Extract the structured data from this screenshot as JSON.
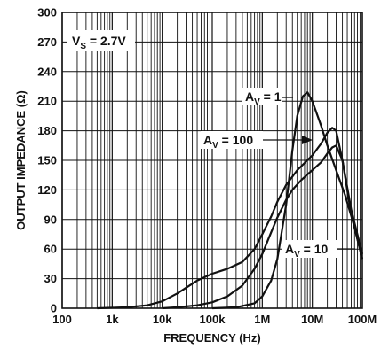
{
  "chart_data": {
    "type": "line",
    "title": "",
    "annotation": "V_S = 2.7V",
    "annotation_main": "V",
    "annotation_sub": "S",
    "annotation_rest": " =  2.7V",
    "xlabel": "FREQUENCY (Hz)",
    "ylabel": "OUTPUT IMPEDANCE (Ω)",
    "x_scale": "log",
    "xlim": [
      100,
      100000000
    ],
    "ylim": [
      0,
      300
    ],
    "x_ticks": [
      100,
      1000,
      10000,
      100000,
      1000000,
      10000000,
      100000000
    ],
    "x_tick_labels": [
      "100",
      "1k",
      "10k",
      "100k",
      "1M",
      "10M",
      "100M"
    ],
    "y_ticks": [
      0,
      30,
      60,
      90,
      120,
      150,
      180,
      210,
      240,
      270,
      300
    ],
    "y_tick_labels": [
      "0",
      "30",
      "60",
      "90",
      "120",
      "150",
      "180",
      "210",
      "240",
      "270",
      "300"
    ],
    "grid": true,
    "series": [
      {
        "name": "A_V = 1",
        "label_main": "A",
        "label_sub": "V",
        "label_rest": " = 1",
        "x": [
          100000,
          300000,
          700000,
          1000000,
          1500000,
          2000000,
          3000000,
          4000000,
          5000000,
          6500000,
          8000000,
          10000000,
          15000000,
          20000000,
          30000000,
          45000000,
          70000000,
          100000000
        ],
        "y": [
          0,
          1,
          5,
          12,
          28,
          50,
          105,
          160,
          195,
          215,
          219,
          210,
          185,
          165,
          140,
          115,
          82,
          50
        ]
      },
      {
        "name": "A_V = 100",
        "label_main": "A",
        "label_sub": "V",
        "label_rest": " = 100",
        "x": [
          500,
          2000,
          5000,
          10000,
          20000,
          50000,
          100000,
          200000,
          400000,
          700000,
          1000000,
          1500000,
          2000000,
          3000000,
          5000000,
          10000000,
          15000000,
          20000000,
          25000000,
          30000000,
          40000000,
          60000000,
          100000000
        ],
        "y": [
          0,
          1,
          3,
          7,
          15,
          28,
          35,
          40,
          47,
          60,
          75,
          93,
          108,
          125,
          140,
          155,
          167,
          178,
          183,
          180,
          150,
          95,
          50
        ]
      },
      {
        "name": "A_V = 10",
        "label_main": "A",
        "label_sub": "V",
        "label_rest": " = 10",
        "x": [
          10000,
          20000,
          50000,
          100000,
          200000,
          400000,
          700000,
          1000000,
          1500000,
          2000000,
          3000000,
          4000000,
          6000000,
          10000000,
          15000000,
          20000000,
          25000000,
          30000000,
          40000000,
          60000000,
          100000000
        ],
        "y": [
          0,
          1,
          3,
          6,
          12,
          23,
          40,
          55,
          77,
          92,
          110,
          120,
          130,
          140,
          148,
          157,
          163,
          165,
          150,
          100,
          55
        ]
      }
    ]
  }
}
